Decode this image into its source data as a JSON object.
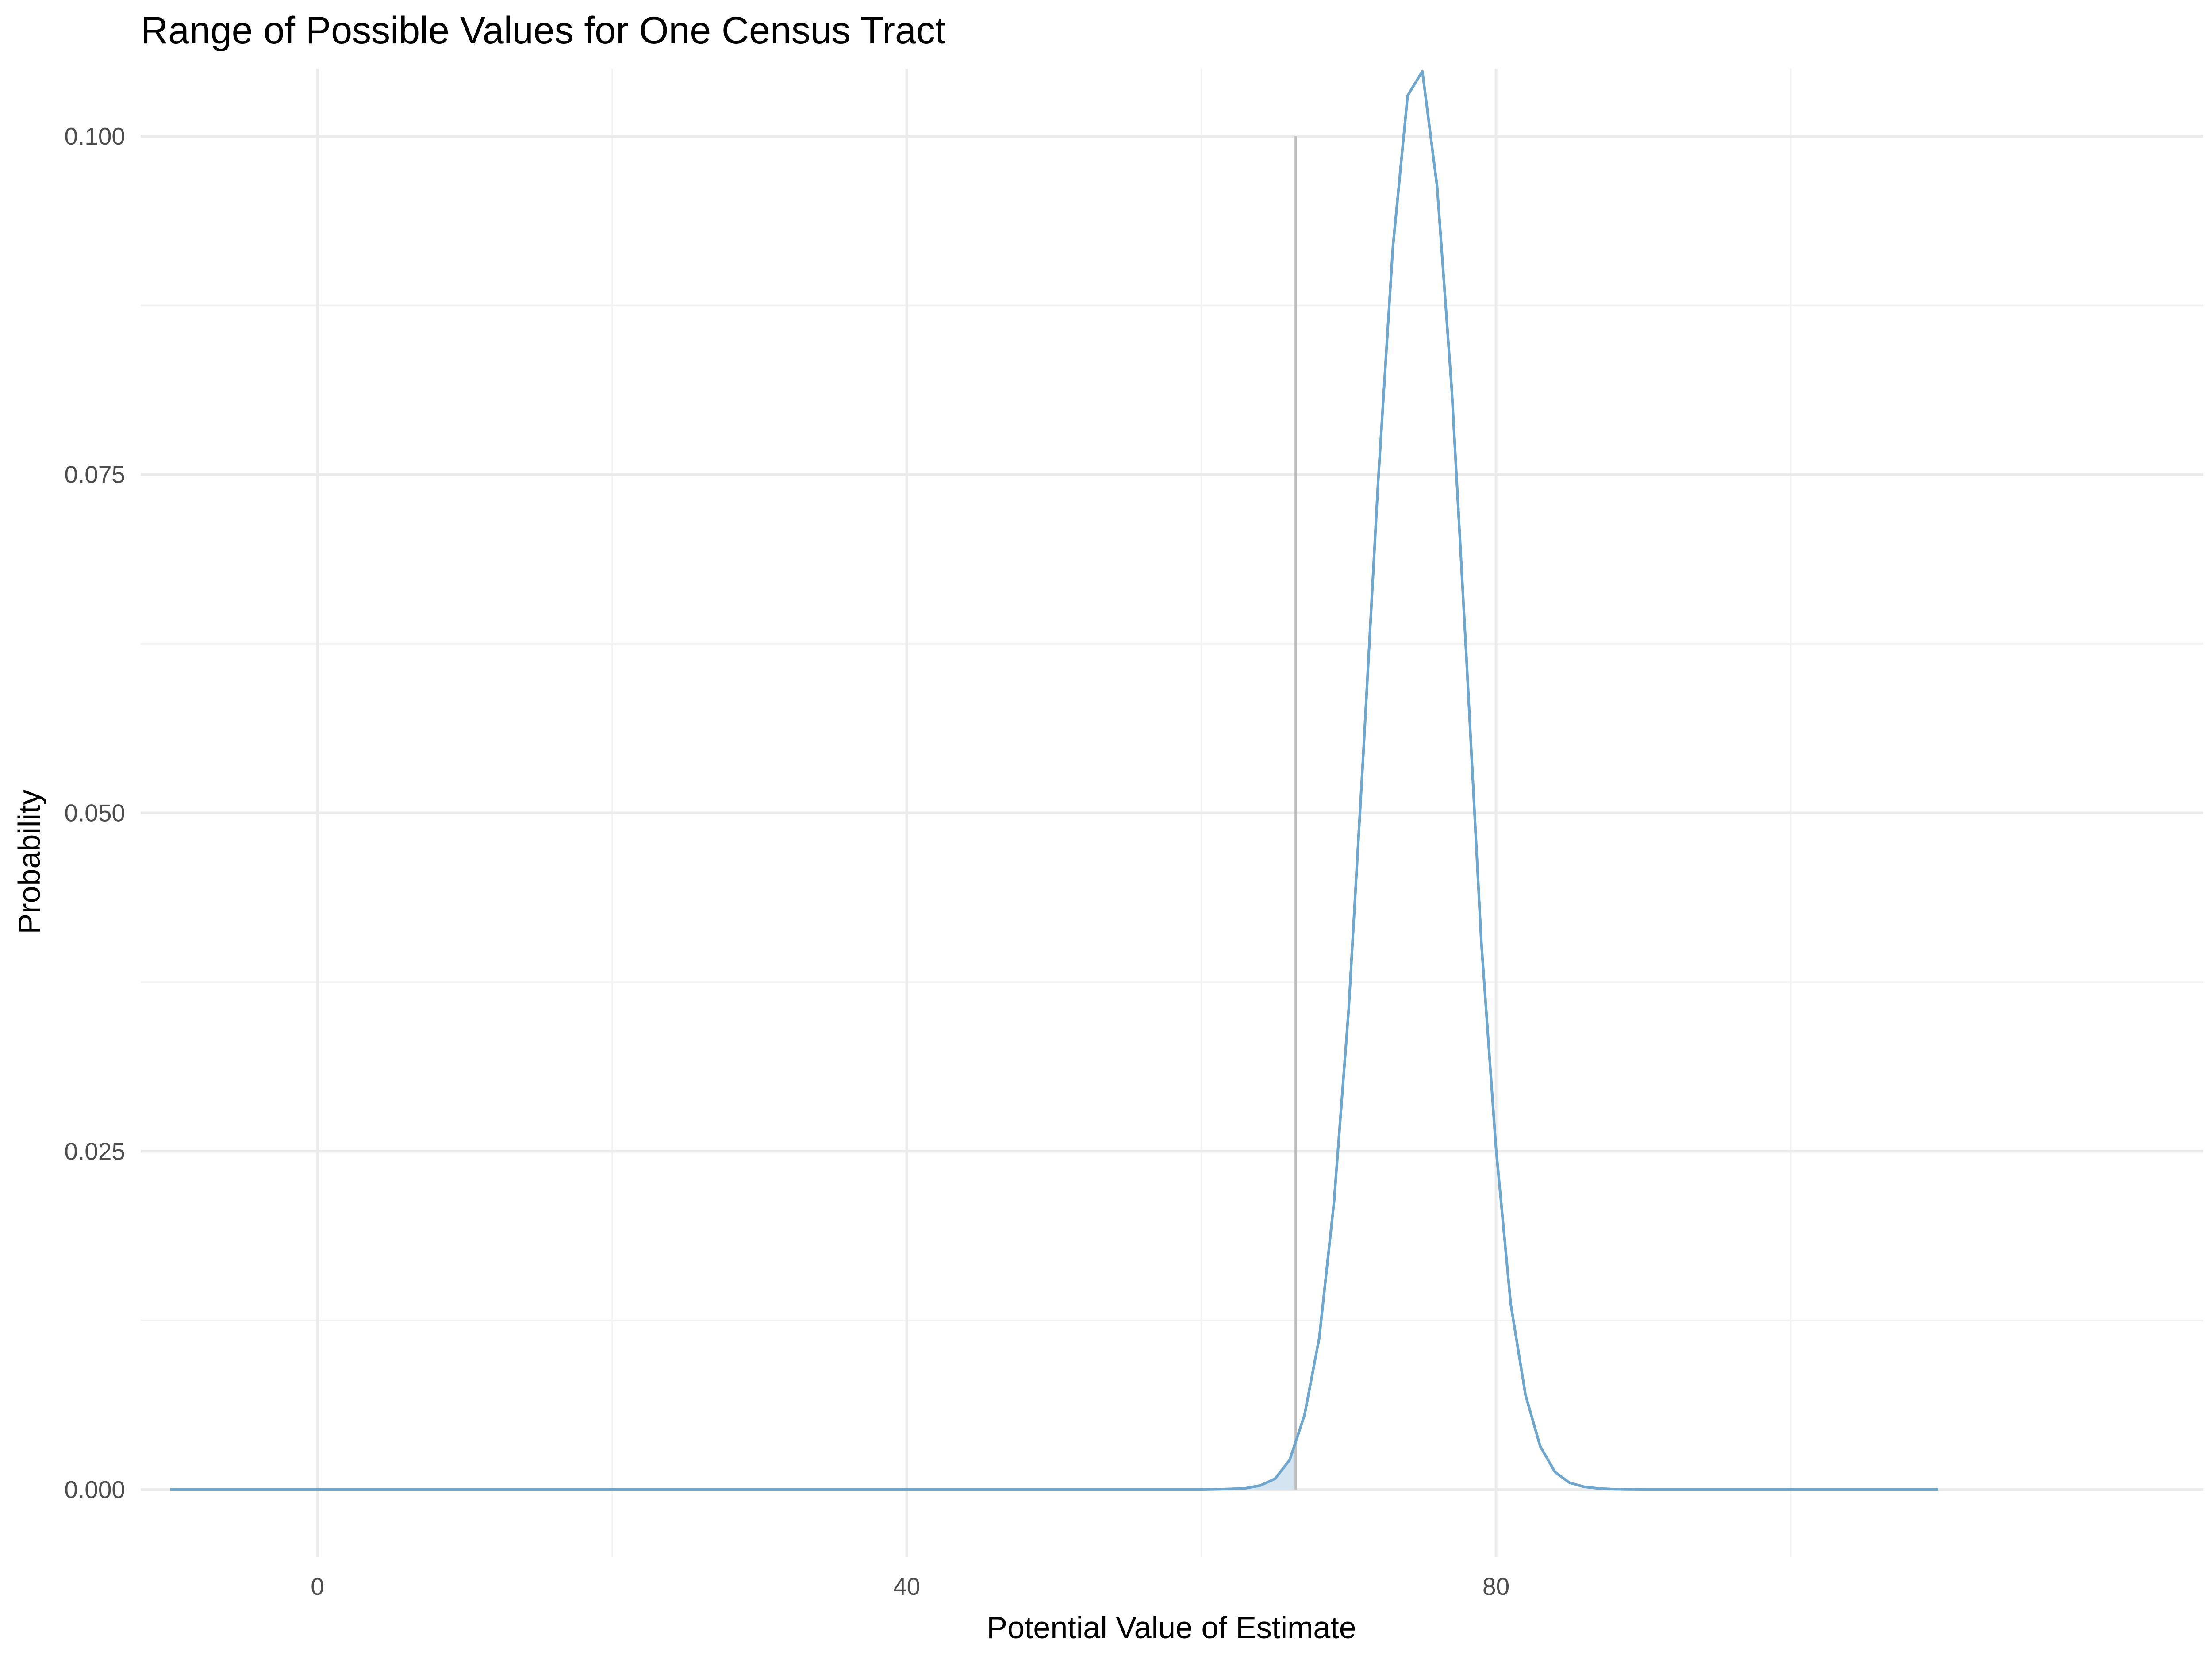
{
  "chart_data": {
    "type": "area",
    "title": "Range of Possible Values for One Census Tract",
    "xlabel": "Potential Value of Estimate",
    "ylabel": "Probability",
    "xlim": [
      -12,
      128
    ],
    "ylim": [
      -0.005,
      0.105
    ],
    "x_major_ticks": [
      0,
      40,
      80
    ],
    "x_tick_labels": [
      "0",
      "40",
      "80"
    ],
    "x_minor_ticks": [
      20,
      60,
      100
    ],
    "y_major_ticks": [
      0.0,
      0.025,
      0.05,
      0.075,
      0.1
    ],
    "y_tick_labels": [
      "0.000",
      "0.025",
      "0.050",
      "0.075",
      "0.100"
    ],
    "y_minor_ticks": [
      0.0125,
      0.0375,
      0.0625,
      0.0875
    ],
    "grid": true,
    "reference_line": {
      "x": 66.4,
      "y_top": 0.1,
      "color": "#bdbdbd"
    },
    "shaded_region": {
      "x_max": 66.4,
      "fill": "#cfe1f0"
    },
    "series": [
      {
        "color": "#6ea6cd",
        "x": [
          -10,
          60,
          61,
          62,
          63,
          64,
          65,
          66,
          67,
          68,
          69,
          70,
          71,
          72,
          73,
          74,
          75,
          76,
          77,
          78,
          79,
          80,
          81,
          82,
          83,
          84,
          85,
          86,
          87,
          88,
          89,
          90,
          91,
          92,
          93,
          110
        ],
        "y": [
          0,
          0,
          2e-05,
          5e-05,
          0.0001,
          0.0003,
          0.0008,
          0.0022,
          0.0055,
          0.0112,
          0.0212,
          0.0355,
          0.0545,
          0.0745,
          0.0918,
          0.103,
          0.1048,
          0.0963,
          0.0812,
          0.0613,
          0.0405,
          0.0252,
          0.0137,
          0.007,
          0.0032,
          0.0013,
          0.0005,
          0.0002,
          8e-05,
          3e-05,
          1e-05,
          0,
          0,
          0,
          0,
          0
        ]
      }
    ]
  }
}
